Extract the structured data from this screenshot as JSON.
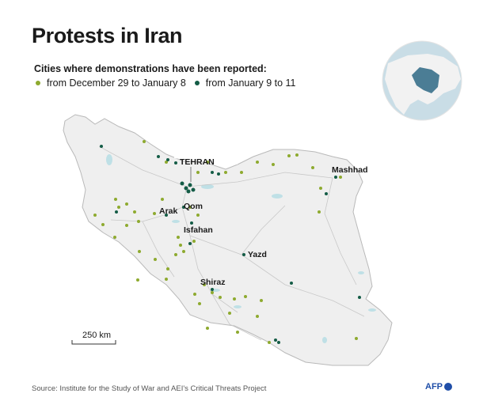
{
  "title": "Protests in Iran",
  "subtitle": "Cities where demonstrations have been reported:",
  "legend": [
    {
      "label": "from December 29 to January 8",
      "color": "#8eaa2f"
    },
    {
      "label": "from January 9 to 11",
      "color": "#145c46"
    }
  ],
  "cities": [
    {
      "name": "TEHRAN"
    },
    {
      "name": "Mashhad"
    },
    {
      "name": "Qom"
    },
    {
      "name": "Arak"
    },
    {
      "name": "Isfahan"
    },
    {
      "name": "Yazd"
    },
    {
      "name": "Shiraz"
    }
  ],
  "scale_label": "250 km",
  "source": "Source: Institute for the Study of War and AEI's Critical Threats Project",
  "brand": "AFP",
  "colors": {
    "land": "#efefef",
    "border": "#b9b9b9",
    "roads": "#c8c8c8",
    "water": "#bfe0e6",
    "globe": "#c9dde6"
  }
}
